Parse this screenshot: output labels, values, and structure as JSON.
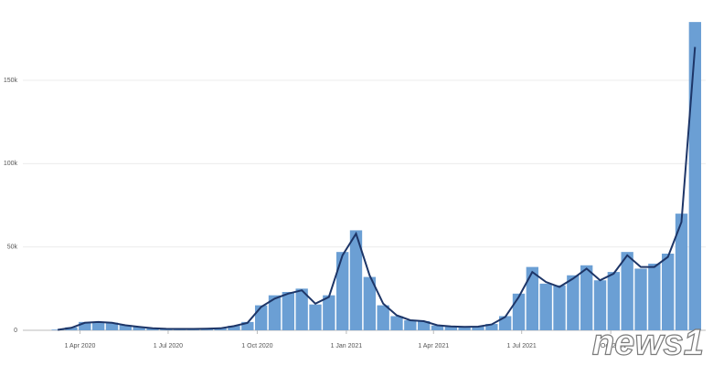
{
  "chart_data": {
    "type": "bar-line",
    "x": [
      "2020-03-09",
      "2020-03-23",
      "2020-04-06",
      "2020-04-20",
      "2020-05-04",
      "2020-05-18",
      "2020-06-01",
      "2020-06-15",
      "2020-06-29",
      "2020-07-13",
      "2020-07-27",
      "2020-08-10",
      "2020-08-24",
      "2020-09-07",
      "2020-09-21",
      "2020-10-05",
      "2020-10-19",
      "2020-11-02",
      "2020-11-16",
      "2020-11-30",
      "2020-12-14",
      "2020-12-28",
      "2021-01-11",
      "2021-01-25",
      "2021-02-08",
      "2021-02-22",
      "2021-03-08",
      "2021-03-22",
      "2021-04-05",
      "2021-04-19",
      "2021-05-03",
      "2021-05-17",
      "2021-05-31",
      "2021-06-14",
      "2021-06-28",
      "2021-07-12",
      "2021-07-26",
      "2021-08-09",
      "2021-08-23",
      "2021-09-06",
      "2021-09-20",
      "2021-10-04",
      "2021-10-18",
      "2021-11-01",
      "2021-11-15",
      "2021-11-29",
      "2021-12-13",
      "2021-12-27"
    ],
    "series": [
      {
        "name": "Daily cases",
        "kind": "bar",
        "color": "#6b9fd4",
        "values": [
          400,
          1800,
          5000,
          5200,
          4600,
          3100,
          2100,
          1300,
          900,
          800,
          800,
          1000,
          1300,
          2700,
          5000,
          15000,
          21000,
          23000,
          25000,
          15500,
          21000,
          47000,
          60000,
          32000,
          15000,
          8500,
          6000,
          5500,
          2900,
          2300,
          2000,
          2300,
          3800,
          8500,
          22000,
          38000,
          28000,
          27000,
          33000,
          39000,
          30000,
          35000,
          47000,
          37000,
          40000,
          46000,
          70000,
          185000
        ]
      },
      {
        "name": "7-day average",
        "kind": "line",
        "color": "#1d3567",
        "values": [
          300,
          1500,
          4500,
          5000,
          4500,
          3000,
          2000,
          1200,
          900,
          800,
          800,
          1000,
          1200,
          2500,
          4500,
          14000,
          19000,
          22000,
          24000,
          16000,
          20000,
          45000,
          58000,
          33000,
          16000,
          9000,
          6000,
          5500,
          3000,
          2300,
          2000,
          2200,
          3500,
          8000,
          20000,
          35000,
          29000,
          26000,
          31000,
          37000,
          30000,
          34000,
          45000,
          38000,
          38000,
          44000,
          65000,
          170000
        ]
      }
    ],
    "xlim": [
      "2020-02-02",
      "2022-01-07"
    ],
    "xticks": [
      {
        "value": "2020-04-01",
        "label": "1 Apr 2020"
      },
      {
        "value": "2020-07-01",
        "label": "1 Jul 2020"
      },
      {
        "value": "2020-10-01",
        "label": "1 Oct 2020"
      },
      {
        "value": "2021-01-01",
        "label": "1 Jan 2021"
      },
      {
        "value": "2021-04-01",
        "label": "1 Apr 2021"
      },
      {
        "value": "2021-07-01",
        "label": "1 Jul 2021"
      },
      {
        "value": "2021-10-01",
        "label": "1 Oct 2021"
      }
    ],
    "ylim": [
      0,
      190000
    ],
    "yticks": [
      0,
      {
        "value": 50000,
        "label": "50k"
      },
      {
        "value": 100000,
        "label": "100k"
      },
      {
        "value": 150000,
        "label": "150k"
      }
    ],
    "grid": true
  },
  "watermark": "news1"
}
